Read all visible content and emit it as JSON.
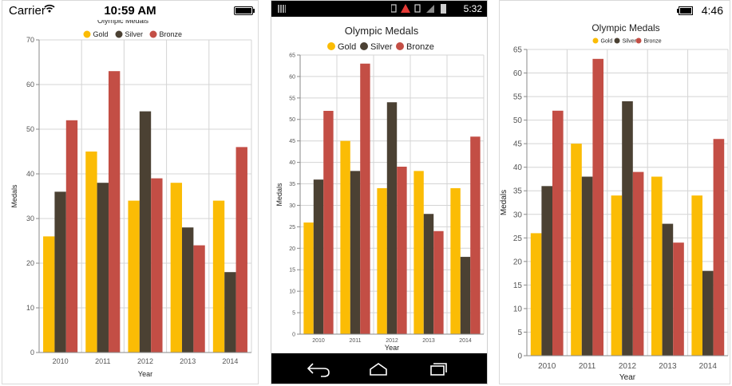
{
  "ios": {
    "carrier": "Carrier",
    "time": "10:59 AM",
    "icons": {
      "wifi": "wifi-icon",
      "battery": "battery-icon"
    }
  },
  "android": {
    "time": "5:32",
    "icons": {
      "sim": "sim-card-icon",
      "notifications": "notification-icons",
      "signal": "signal-icon",
      "battery": "battery-icon"
    },
    "nav": {
      "back": "back-icon",
      "home": "home-icon",
      "recents": "recent-apps-icon"
    }
  },
  "wp": {
    "time": "4:46",
    "icons": {
      "battery": "battery-icon"
    }
  },
  "colors": {
    "gold": "#FBBC05",
    "silver": "#4B4133",
    "bronze": "#C34E45",
    "grid": "#d4d4d4",
    "axis": "#8a8a8a"
  },
  "chart_data": {
    "type": "bar",
    "title": "Olympic Medals",
    "xlabel": "Year",
    "ylabel": "Medals",
    "categories": [
      "2010",
      "2011",
      "2012",
      "2013",
      "2014"
    ],
    "series": [
      {
        "name": "Gold",
        "values": [
          26,
          45,
          34,
          38,
          34
        ]
      },
      {
        "name": "Silver",
        "values": [
          36,
          38,
          54,
          28,
          18
        ]
      },
      {
        "name": "Bronze",
        "values": [
          52,
          63,
          39,
          24,
          46
        ]
      }
    ],
    "legend_position": "top",
    "grid": true,
    "views": [
      {
        "ylim": [
          0,
          70
        ],
        "yticks": [
          "0",
          "10",
          "20",
          "30",
          "40",
          "50",
          "60",
          "70"
        ]
      },
      {
        "ylim": [
          0,
          65
        ],
        "yticks": [
          "0",
          "5",
          "10",
          "15",
          "20",
          "25",
          "30",
          "35",
          "40",
          "45",
          "50",
          "55",
          "60",
          "65"
        ]
      },
      {
        "ylim": [
          0,
          65
        ],
        "yticks": [
          "0",
          "5",
          "10",
          "15",
          "20",
          "25",
          "30",
          "35",
          "40",
          "45",
          "50",
          "55",
          "60",
          "65"
        ]
      }
    ]
  }
}
